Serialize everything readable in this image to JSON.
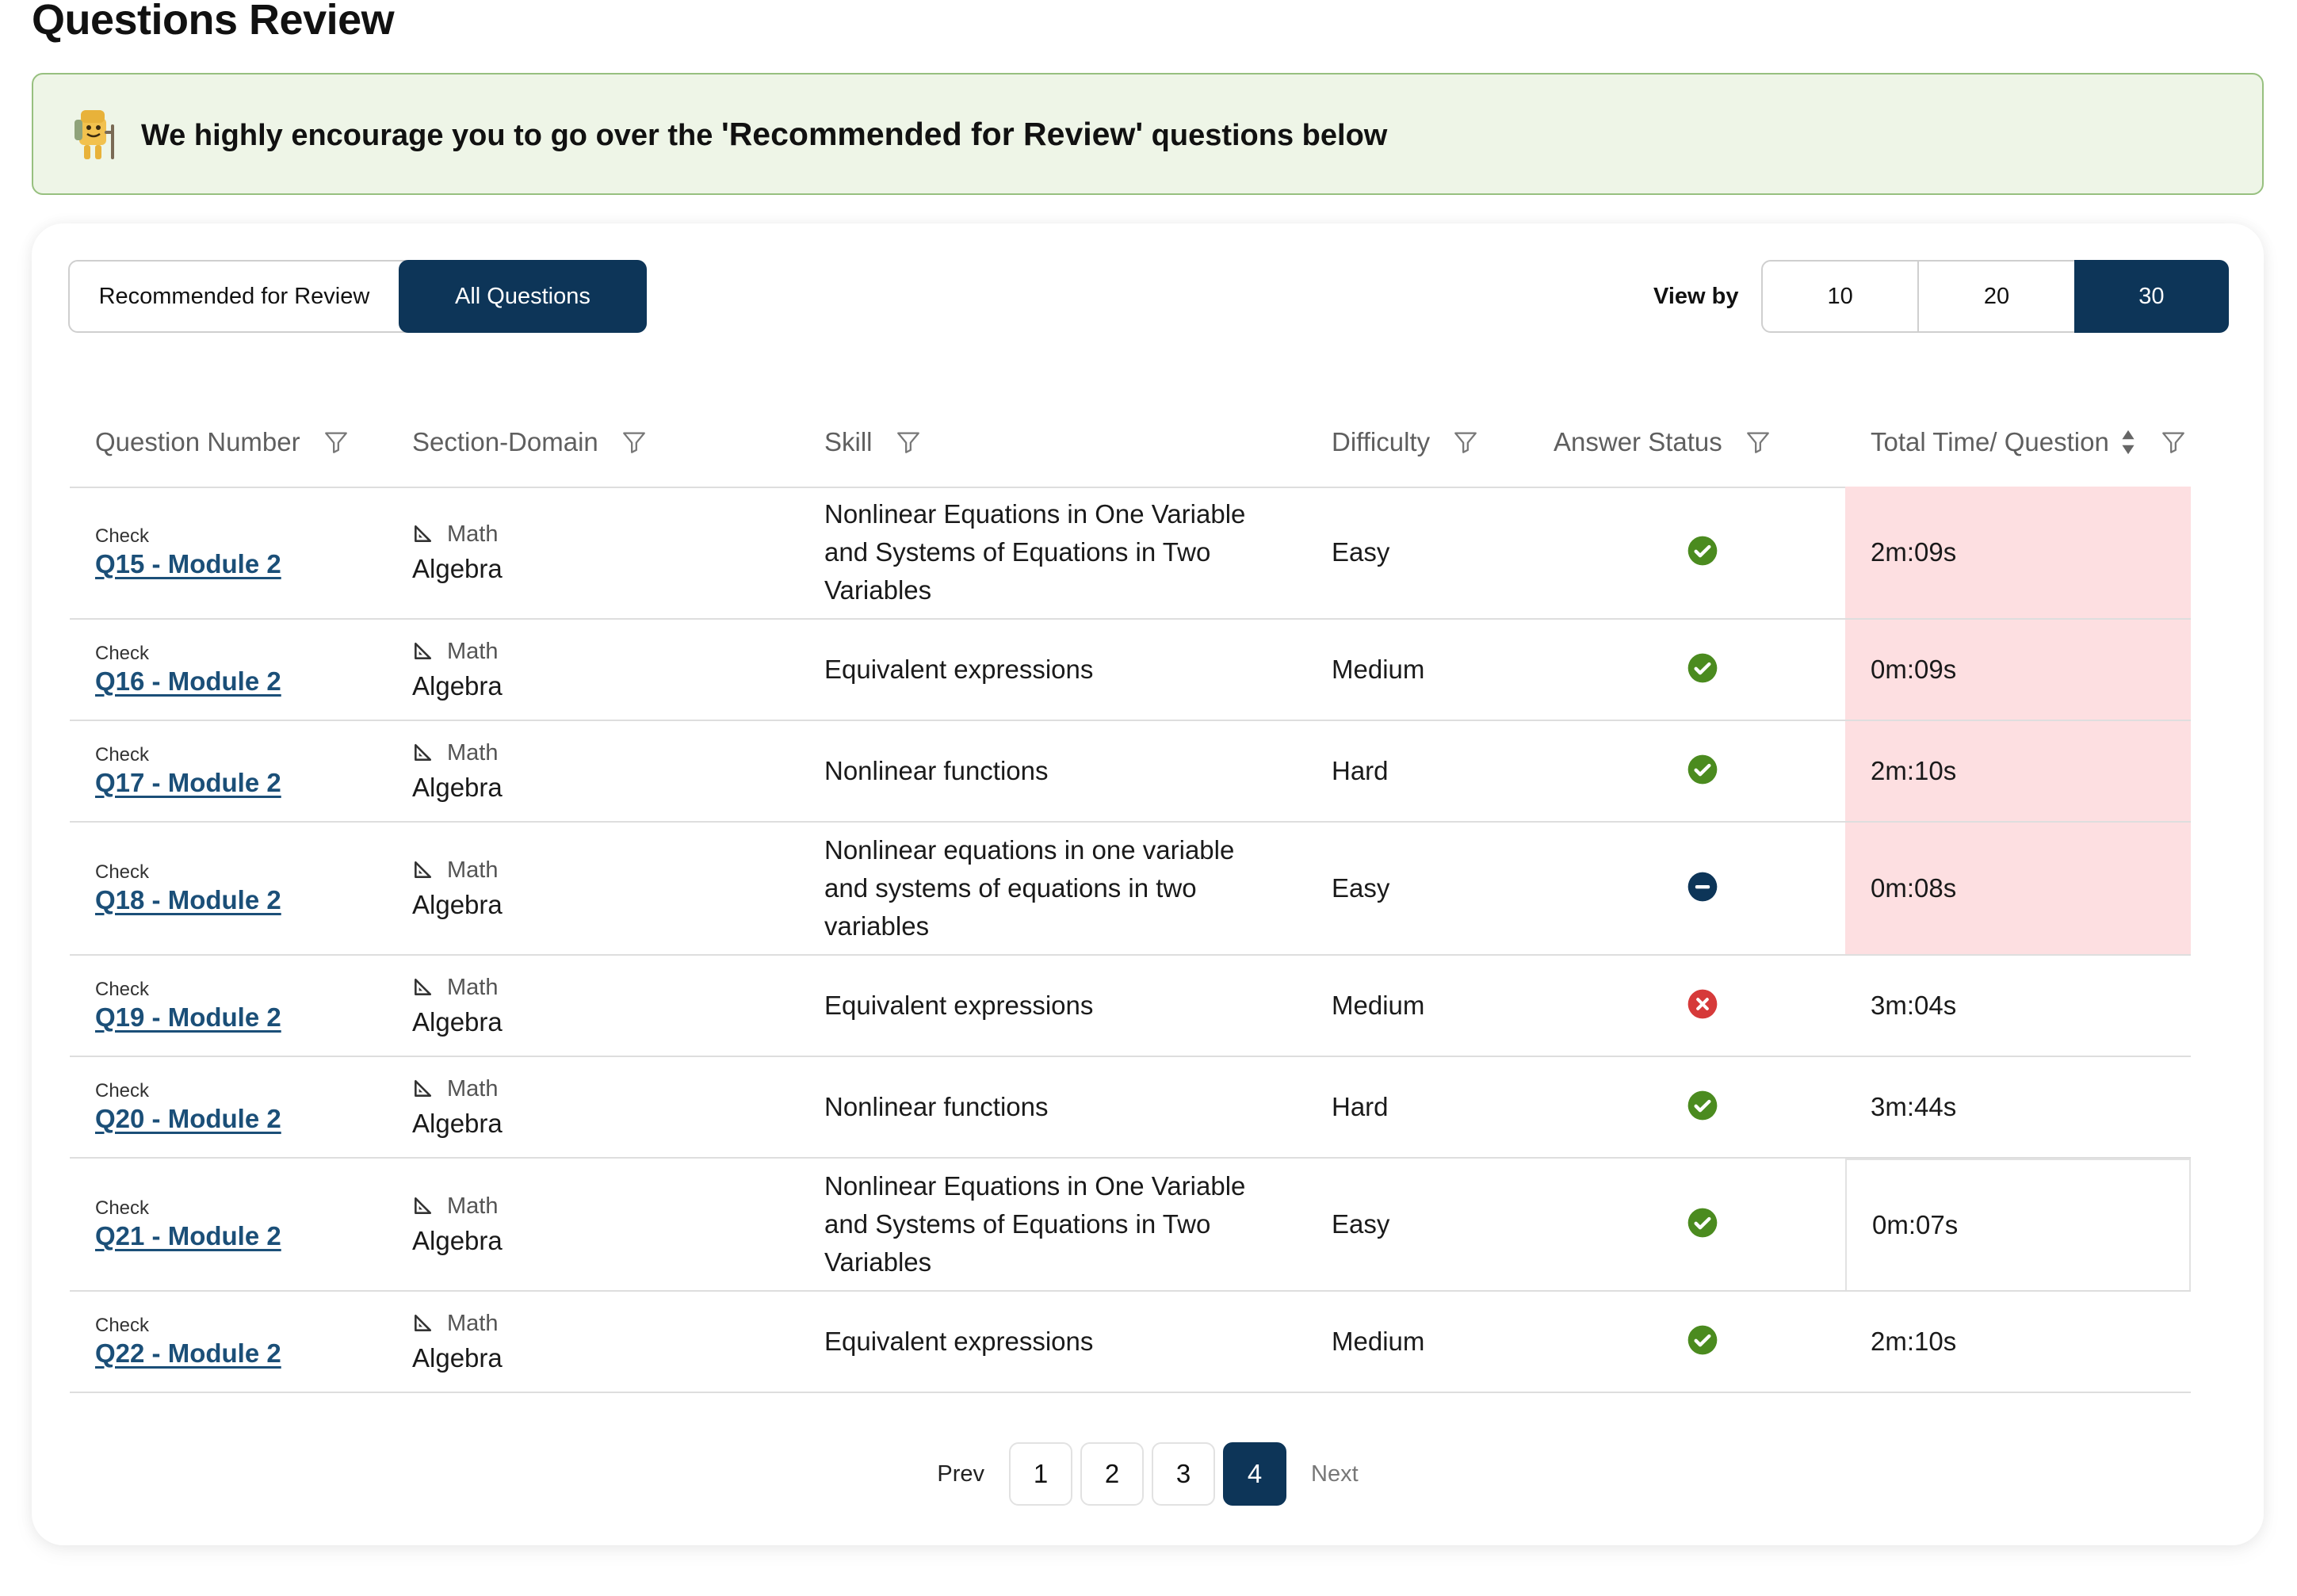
{
  "page_title": "Questions Review",
  "banner": {
    "prefix": "We highly encourage you to go over the ",
    "emphasis": "'Recommended for Review'",
    "suffix": " questions below"
  },
  "filter_toggle": {
    "recommended": "Recommended for Review",
    "all": "All Questions",
    "active": "all"
  },
  "view_by": {
    "label": "View by",
    "options": [
      "10",
      "20",
      "30"
    ],
    "active": "30"
  },
  "columns": {
    "question_number": "Question Number",
    "section_domain": "Section-Domain",
    "skill": "Skill",
    "difficulty": "Difficulty",
    "answer_status": "Answer Status",
    "total_time": "Total Time/ Question"
  },
  "rows": [
    {
      "check": "Check",
      "question": "Q15 - Module 2",
      "section": "Math",
      "domain": "Algebra",
      "skill_lines": [
        "Nonlinear Equations in One Variable",
        "and Systems of Equations in Two",
        "Variables"
      ],
      "difficulty": "Easy",
      "status": "correct",
      "time": "2m:09s",
      "flagged": true
    },
    {
      "check": "Check",
      "question": "Q16 - Module 2",
      "section": "Math",
      "domain": "Algebra",
      "skill_lines": [
        "Equivalent expressions"
      ],
      "difficulty": "Medium",
      "status": "correct",
      "time": "0m:09s",
      "flagged": true
    },
    {
      "check": "Check",
      "question": "Q17 - Module 2",
      "section": "Math",
      "domain": "Algebra",
      "skill_lines": [
        "Nonlinear functions"
      ],
      "difficulty": "Hard",
      "status": "correct",
      "time": "2m:10s",
      "flagged": true
    },
    {
      "check": "Check",
      "question": "Q18 - Module 2",
      "section": "Math",
      "domain": "Algebra",
      "skill_lines": [
        "Nonlinear equations in one variable",
        "and systems of equations in two",
        "variables"
      ],
      "difficulty": "Easy",
      "status": "omitted",
      "time": "0m:08s",
      "flagged": true
    },
    {
      "check": "Check",
      "question": "Q19 - Module 2",
      "section": "Math",
      "domain": "Algebra",
      "skill_lines": [
        "Equivalent expressions"
      ],
      "difficulty": "Medium",
      "status": "incorrect",
      "time": "3m:04s",
      "flagged": false
    },
    {
      "check": "Check",
      "question": "Q20 - Module 2",
      "section": "Math",
      "domain": "Algebra",
      "skill_lines": [
        "Nonlinear functions"
      ],
      "difficulty": "Hard",
      "status": "correct",
      "time": "3m:44s",
      "flagged": false
    },
    {
      "check": "Check",
      "question": "Q21 - Module 2",
      "section": "Math",
      "domain": "Algebra",
      "skill_lines": [
        "Nonlinear Equations in One Variable",
        "and Systems of Equations in Two",
        "Variables"
      ],
      "difficulty": "Easy",
      "status": "correct",
      "time": "0m:07s",
      "flagged": false,
      "outlined": true
    },
    {
      "check": "Check",
      "question": "Q22 - Module 2",
      "section": "Math",
      "domain": "Algebra",
      "skill_lines": [
        "Equivalent expressions"
      ],
      "difficulty": "Medium",
      "status": "correct",
      "time": "2m:10s",
      "flagged": false
    }
  ],
  "pagination": {
    "prev": "Prev",
    "next": "Next",
    "pages": [
      "1",
      "2",
      "3",
      "4"
    ],
    "current": "4"
  },
  "colors": {
    "primary_navy": "#0d3558",
    "correct_green": "#4b8b1f",
    "incorrect_red": "#d63a3a",
    "flag_pink": "#fddfe1",
    "banner_bg": "#eef5e7",
    "banner_border": "#97c07f",
    "link_blue": "#1b4f78"
  }
}
